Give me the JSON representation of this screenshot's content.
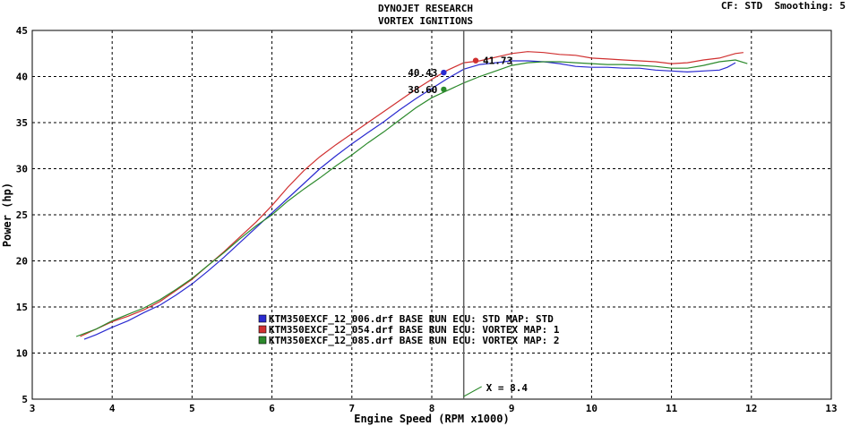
{
  "chart_data": {
    "type": "line",
    "title": "DYNOJET RESEARCH",
    "subtitle": "VORTEX IGNITIONS",
    "top_right": "CF: STD  Smoothing: 5",
    "xlabel": "Engine Speed (RPM x1000)",
    "ylabel": "Power (hp)",
    "xlim": [
      3,
      13
    ],
    "ylim": [
      5,
      45
    ],
    "xticks": [
      3,
      4,
      5,
      6,
      7,
      8,
      9,
      10,
      11,
      12,
      13
    ],
    "yticks": [
      5,
      10,
      15,
      20,
      25,
      30,
      35,
      40,
      45
    ],
    "grid": true,
    "cursor": {
      "x": 8.4,
      "label": "X = 8.4"
    },
    "colors": {
      "background": "#ffffff",
      "grid": "#000000",
      "cursor": "#606060"
    },
    "series": [
      {
        "name": "KTM350EXCF_12_006.drf BASE RUN ECU: STD MAP: STD",
        "color": "#2a2ad0",
        "x": [
          3.65,
          3.8,
          4.0,
          4.2,
          4.4,
          4.6,
          4.8,
          5.0,
          5.2,
          5.4,
          5.6,
          5.8,
          6.0,
          6.2,
          6.4,
          6.6,
          6.8,
          7.0,
          7.2,
          7.4,
          7.6,
          7.8,
          8.0,
          8.2,
          8.4,
          8.6,
          8.8,
          9.0,
          9.2,
          9.4,
          9.6,
          9.8,
          10.0,
          10.2,
          10.4,
          10.6,
          10.8,
          11.0,
          11.2,
          11.4,
          11.6,
          11.7,
          11.8
        ],
        "y": [
          11.5,
          12.0,
          12.8,
          13.5,
          14.4,
          15.2,
          16.3,
          17.5,
          18.9,
          20.4,
          22.0,
          23.6,
          25.2,
          26.8,
          28.4,
          30.0,
          31.4,
          32.7,
          33.9,
          35.1,
          36.4,
          37.6,
          38.7,
          39.8,
          40.8,
          41.3,
          41.5,
          41.7,
          41.7,
          41.6,
          41.4,
          41.1,
          41.0,
          41.0,
          40.9,
          40.9,
          40.7,
          40.6,
          40.5,
          40.6,
          40.7,
          41.0,
          41.5
        ],
        "marker": {
          "x": 8.15,
          "y": 40.43,
          "label": "40.43"
        }
      },
      {
        "name": "KTM350EXCF_12_054.drf BASE RUN ECU: VORTEX MAP: 1",
        "color": "#d03030",
        "x": [
          3.6,
          3.8,
          4.0,
          4.2,
          4.4,
          4.6,
          4.8,
          5.0,
          5.2,
          5.4,
          5.6,
          5.8,
          6.0,
          6.2,
          6.4,
          6.6,
          6.8,
          7.0,
          7.2,
          7.4,
          7.6,
          7.8,
          8.0,
          8.2,
          8.4,
          8.6,
          8.8,
          9.0,
          9.2,
          9.4,
          9.6,
          9.8,
          10.0,
          10.2,
          10.4,
          10.6,
          10.8,
          11.0,
          11.2,
          11.4,
          11.6,
          11.8,
          11.9
        ],
        "y": [
          11.8,
          12.6,
          13.4,
          14.0,
          14.7,
          15.6,
          16.8,
          18.0,
          19.5,
          21.0,
          22.6,
          24.2,
          26.0,
          28.0,
          29.8,
          31.3,
          32.6,
          33.8,
          35.0,
          36.2,
          37.4,
          38.6,
          39.7,
          40.7,
          41.5,
          41.7,
          42.1,
          42.5,
          42.7,
          42.6,
          42.4,
          42.3,
          42.0,
          41.9,
          41.8,
          41.7,
          41.6,
          41.4,
          41.5,
          41.8,
          42.0,
          42.5,
          42.6
        ],
        "marker": {
          "x": 8.55,
          "y": 41.73,
          "label": "41.73"
        }
      },
      {
        "name": "KTM350EXCF_12_085.drf BASE RUN ECU: VORTEX MAP: 2",
        "color": "#2c8a2c",
        "x": [
          3.55,
          3.8,
          4.0,
          4.2,
          4.4,
          4.6,
          4.8,
          5.0,
          5.2,
          5.4,
          5.6,
          5.8,
          6.0,
          6.2,
          6.4,
          6.6,
          6.8,
          7.0,
          7.2,
          7.4,
          7.6,
          7.8,
          8.0,
          8.2,
          8.4,
          8.6,
          8.8,
          9.0,
          9.2,
          9.4,
          9.6,
          9.8,
          10.0,
          10.2,
          10.4,
          10.6,
          10.8,
          11.0,
          11.2,
          11.4,
          11.6,
          11.8,
          11.95
        ],
        "y": [
          11.8,
          12.6,
          13.5,
          14.2,
          14.9,
          15.8,
          16.9,
          18.1,
          19.5,
          20.9,
          22.4,
          23.8,
          25.0,
          26.5,
          27.8,
          29.0,
          30.3,
          31.5,
          32.8,
          34.0,
          35.3,
          36.6,
          37.7,
          38.5,
          39.3,
          40.0,
          40.6,
          41.2,
          41.5,
          41.6,
          41.6,
          41.5,
          41.4,
          41.3,
          41.3,
          41.2,
          41.1,
          40.9,
          40.9,
          41.2,
          41.6,
          41.8,
          41.4
        ],
        "marker": {
          "x": 8.15,
          "y": 38.6,
          "label": "38.60"
        }
      }
    ]
  }
}
